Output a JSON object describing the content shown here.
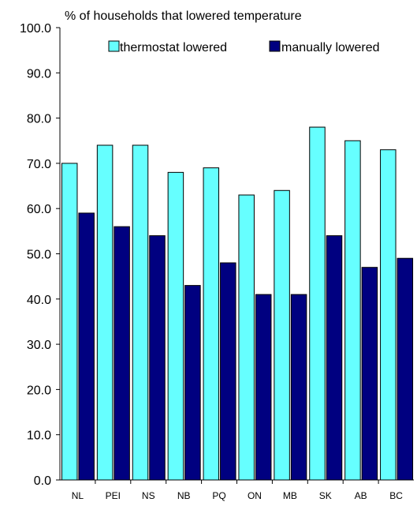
{
  "chart_data": {
    "type": "bar",
    "title": "% of households that lowered temperature",
    "categories": [
      "NL",
      "PEI",
      "NS",
      "NB",
      "PQ",
      "ON",
      "MB",
      "SK",
      "AB",
      "BC"
    ],
    "series": [
      {
        "name": "thermostat lowered",
        "color": "#66ffff",
        "values": [
          70,
          74,
          74,
          68,
          69,
          63,
          64,
          78,
          75,
          73
        ]
      },
      {
        "name": "manually lowered",
        "color": "#000080",
        "values": [
          59,
          56,
          54,
          43,
          48,
          41,
          41,
          54,
          47,
          49
        ]
      }
    ],
    "ylim": [
      0,
      100
    ],
    "yticks": [
      "0.0",
      "10.0",
      "20.0",
      "30.0",
      "40.0",
      "50.0",
      "60.0",
      "70.0",
      "80.0",
      "90.0",
      "100.0"
    ],
    "grid": false,
    "legend_position": "top-right"
  }
}
